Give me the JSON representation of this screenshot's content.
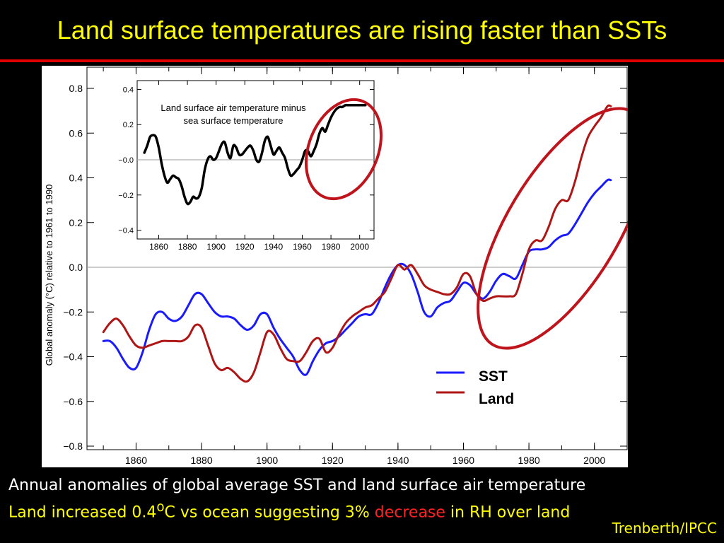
{
  "slide": {
    "title": "Land surface temperatures are rising faster than SSTs",
    "caption_line1": "Annual anomalies of global average SST and land surface air temperature",
    "caption_line2_a": "Land increased 0.4",
    "caption_line2_sup": "o",
    "caption_line2_b": "C vs ocean suggesting 3% ",
    "caption_line2_red": "decrease",
    "caption_line2_c": " in RH over land",
    "credit": "Trenberth/IPCC",
    "colors": {
      "title": "#ffff00",
      "rule": "#e00000",
      "highlight_ellipse": "#c0141c",
      "emphasis": "#ff2020"
    }
  },
  "chart_data": [
    {
      "type": "line",
      "title": "",
      "xlabel": "",
      "ylabel": "Global anomaly (°C) relative to 1961 to 1990",
      "xlim": [
        1845,
        2010
      ],
      "ylim": [
        -0.8,
        0.8
      ],
      "xticks": [
        "1860",
        "1880",
        "1900",
        "1920",
        "1940",
        "1960",
        "1980",
        "2000"
      ],
      "yticks": [
        "0.8",
        "0.6",
        "0.4",
        "0.2",
        "0.0",
        "−0.2",
        "−0.4",
        "−0.6",
        "−0.8"
      ],
      "grid": false,
      "zero_line": true,
      "legend_position": "bottom-right",
      "series": [
        {
          "name": "SST",
          "color": "#1a1aff",
          "x": [
            1850,
            1852,
            1854,
            1856,
            1858,
            1860,
            1862,
            1864,
            1866,
            1868,
            1870,
            1872,
            1874,
            1876,
            1878,
            1880,
            1882,
            1884,
            1886,
            1888,
            1890,
            1892,
            1894,
            1896,
            1898,
            1900,
            1902,
            1904,
            1906,
            1908,
            1910,
            1912,
            1914,
            1916,
            1918,
            1920,
            1922,
            1924,
            1926,
            1928,
            1930,
            1932,
            1934,
            1936,
            1938,
            1940,
            1942,
            1944,
            1946,
            1948,
            1950,
            1952,
            1954,
            1956,
            1958,
            1960,
            1962,
            1964,
            1966,
            1968,
            1970,
            1972,
            1974,
            1976,
            1978,
            1980,
            1982,
            1984,
            1986,
            1988,
            1990,
            1992,
            1994,
            1996,
            1998,
            2000,
            2002,
            2004,
            2005
          ],
          "values": [
            -0.33,
            -0.33,
            -0.36,
            -0.41,
            -0.45,
            -0.45,
            -0.38,
            -0.28,
            -0.21,
            -0.2,
            -0.23,
            -0.24,
            -0.22,
            -0.17,
            -0.12,
            -0.12,
            -0.16,
            -0.2,
            -0.22,
            -0.22,
            -0.23,
            -0.26,
            -0.28,
            -0.26,
            -0.21,
            -0.21,
            -0.27,
            -0.32,
            -0.36,
            -0.4,
            -0.46,
            -0.48,
            -0.42,
            -0.37,
            -0.34,
            -0.33,
            -0.31,
            -0.28,
            -0.25,
            -0.22,
            -0.21,
            -0.21,
            -0.16,
            -0.09,
            -0.03,
            0.01,
            0.01,
            -0.03,
            -0.11,
            -0.2,
            -0.22,
            -0.18,
            -0.16,
            -0.15,
            -0.11,
            -0.07,
            -0.08,
            -0.12,
            -0.14,
            -0.11,
            -0.06,
            -0.03,
            -0.04,
            -0.05,
            0.01,
            0.07,
            0.08,
            0.08,
            0.09,
            0.12,
            0.14,
            0.15,
            0.19,
            0.24,
            0.29,
            0.33,
            0.36,
            0.39,
            0.39
          ]
        },
        {
          "name": "Land",
          "color": "#b01515",
          "x": [
            1850,
            1852,
            1854,
            1856,
            1858,
            1860,
            1862,
            1864,
            1866,
            1868,
            1870,
            1872,
            1874,
            1876,
            1878,
            1880,
            1882,
            1884,
            1886,
            1888,
            1890,
            1892,
            1894,
            1896,
            1898,
            1900,
            1902,
            1904,
            1906,
            1908,
            1910,
            1912,
            1914,
            1916,
            1918,
            1920,
            1922,
            1924,
            1926,
            1928,
            1930,
            1932,
            1934,
            1936,
            1938,
            1940,
            1942,
            1944,
            1946,
            1948,
            1950,
            1952,
            1954,
            1956,
            1958,
            1960,
            1962,
            1964,
            1966,
            1968,
            1970,
            1972,
            1974,
            1976,
            1978,
            1980,
            1982,
            1984,
            1986,
            1988,
            1990,
            1992,
            1994,
            1996,
            1998,
            2000,
            2002,
            2004,
            2005
          ],
          "values": [
            -0.29,
            -0.25,
            -0.23,
            -0.26,
            -0.31,
            -0.35,
            -0.36,
            -0.35,
            -0.34,
            -0.33,
            -0.33,
            -0.33,
            -0.33,
            -0.31,
            -0.26,
            -0.27,
            -0.35,
            -0.43,
            -0.46,
            -0.45,
            -0.47,
            -0.5,
            -0.51,
            -0.47,
            -0.38,
            -0.29,
            -0.3,
            -0.36,
            -0.41,
            -0.42,
            -0.42,
            -0.38,
            -0.33,
            -0.32,
            -0.38,
            -0.36,
            -0.3,
            -0.25,
            -0.22,
            -0.2,
            -0.18,
            -0.17,
            -0.14,
            -0.11,
            -0.05,
            0.01,
            -0.01,
            0.01,
            -0.03,
            -0.08,
            -0.1,
            -0.11,
            -0.12,
            -0.12,
            -0.09,
            -0.03,
            -0.04,
            -0.12,
            -0.15,
            -0.14,
            -0.13,
            -0.13,
            -0.13,
            -0.12,
            -0.03,
            0.08,
            0.12,
            0.12,
            0.18,
            0.26,
            0.3,
            0.3,
            0.38,
            0.49,
            0.58,
            0.63,
            0.67,
            0.72,
            0.72
          ]
        }
      ]
    },
    {
      "type": "line",
      "title": "Land surface air temperature minus sea surface temperature",
      "xlabel": "",
      "ylabel": "",
      "xlim": [
        1845,
        2010
      ],
      "ylim": [
        -0.45,
        0.45
      ],
      "xticks": [
        "1860",
        "1880",
        "1900",
        "1920",
        "1940",
        "1960",
        "1980",
        "2000"
      ],
      "yticks": [
        "0.4",
        "0.2",
        "−0.0",
        "−0.2",
        "−0.4"
      ],
      "grid": false,
      "zero_line": true,
      "series": [
        {
          "color": "#000000",
          "x": [
            1850,
            1852,
            1854,
            1856,
            1858,
            1860,
            1862,
            1864,
            1866,
            1868,
            1870,
            1872,
            1874,
            1876,
            1878,
            1880,
            1882,
            1884,
            1886,
            1888,
            1890,
            1892,
            1894,
            1896,
            1898,
            1900,
            1902,
            1904,
            1906,
            1908,
            1910,
            1912,
            1914,
            1916,
            1918,
            1920,
            1922,
            1924,
            1926,
            1928,
            1930,
            1932,
            1934,
            1936,
            1938,
            1940,
            1942,
            1944,
            1946,
            1948,
            1950,
            1952,
            1954,
            1956,
            1958,
            1960,
            1962,
            1964,
            1966,
            1968,
            1970,
            1972,
            1974,
            1976,
            1978,
            1980,
            1982,
            1984,
            1986,
            1988,
            1990,
            1992,
            1994,
            1996,
            1998,
            2000,
            2002,
            2004
          ],
          "values": [
            0.04,
            0.08,
            0.13,
            0.14,
            0.13,
            0.07,
            -0.02,
            -0.09,
            -0.13,
            -0.11,
            -0.09,
            -0.1,
            -0.11,
            -0.15,
            -0.21,
            -0.25,
            -0.24,
            -0.21,
            -0.22,
            -0.21,
            -0.16,
            -0.06,
            0.0,
            0.02,
            0.0,
            0.01,
            0.05,
            0.09,
            0.1,
            0.04,
            0.01,
            0.08,
            0.07,
            0.03,
            0.03,
            0.05,
            0.07,
            0.08,
            0.05,
            0.0,
            -0.01,
            0.04,
            0.11,
            0.13,
            0.08,
            0.03,
            0.05,
            0.07,
            0.04,
            0.01,
            -0.05,
            -0.09,
            -0.08,
            -0.06,
            -0.04,
            0.0,
            0.05,
            0.05,
            0.02,
            0.05,
            0.09,
            0.15,
            0.18,
            0.16,
            0.2,
            0.24,
            0.27,
            0.29,
            0.3,
            0.3,
            0.31,
            0.31,
            0.31,
            0.31,
            0.31,
            0.31,
            0.31,
            0.31
          ]
        }
      ]
    }
  ]
}
